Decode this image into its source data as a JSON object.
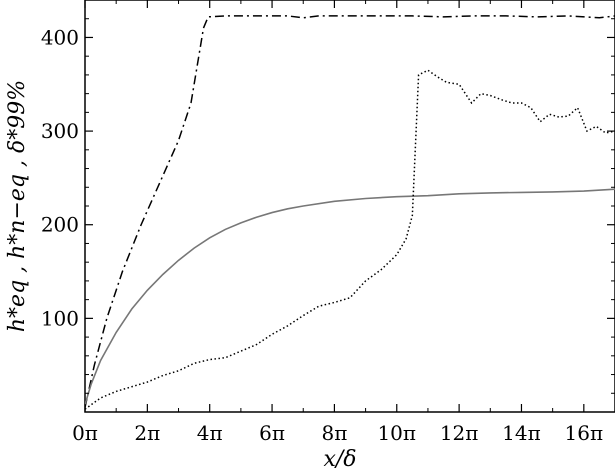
{
  "chart_data": {
    "type": "line",
    "title": "",
    "xlabel": "x/δ",
    "ylabel": "h*eq , h*n−eq , δ*99%",
    "xlim": [
      0,
      17
    ],
    "ylim": [
      0,
      440
    ],
    "grid": false,
    "x_tick_values": [
      0,
      2,
      4,
      6,
      8,
      10,
      12,
      14,
      16
    ],
    "x_tick_labels": [
      "0π",
      "2π",
      "4π",
      "6π",
      "8π",
      "10π",
      "12π",
      "14π",
      "16π"
    ],
    "y_tick_values": [
      100,
      200,
      300,
      400
    ],
    "y_tick_labels": [
      "100",
      "200",
      "300",
      "400"
    ],
    "series": [
      {
        "style": "dash-dot",
        "color": "#000000",
        "x": [
          0,
          0.3,
          0.7,
          1.2,
          1.8,
          2.4,
          3.0,
          3.4,
          3.6,
          3.8,
          3.95,
          4.5,
          5.5,
          6.5,
          7.0,
          7.5,
          8.5,
          9.5,
          10.5,
          11.5,
          12.5,
          13.5,
          14.5,
          15.5,
          16.5,
          17.0
        ],
        "y": [
          5,
          50,
          100,
          150,
          200,
          245,
          290,
          330,
          370,
          410,
          422,
          423,
          423,
          423,
          421,
          423,
          423,
          423,
          423,
          422,
          423,
          423,
          422,
          423,
          421,
          423
        ]
      },
      {
        "style": "solid",
        "color": "#777777",
        "x": [
          0,
          0.2,
          0.5,
          1.0,
          1.5,
          2.0,
          2.5,
          3.0,
          3.5,
          4.0,
          4.5,
          5.0,
          5.5,
          6.0,
          6.5,
          7.0,
          8.0,
          9.0,
          10.0,
          11.0,
          12.0,
          13.0,
          14.0,
          15.0,
          16.0,
          17.0
        ],
        "y": [
          8,
          30,
          55,
          85,
          110,
          130,
          147,
          162,
          175,
          186,
          195,
          202,
          208,
          213,
          217,
          220,
          225,
          228,
          230,
          231,
          233,
          234,
          234.5,
          235,
          236,
          238
        ]
      },
      {
        "style": "dotted",
        "color": "#000000",
        "x": [
          0,
          0.5,
          1.0,
          1.5,
          2.0,
          2.5,
          3.0,
          3.5,
          4.0,
          4.5,
          5.0,
          5.5,
          6.0,
          6.5,
          7.0,
          7.5,
          8.0,
          8.5,
          9.0,
          9.5,
          10.0,
          10.3,
          10.5,
          10.7,
          11.0,
          11.3,
          11.6,
          12.0,
          12.4,
          12.7,
          13.0,
          13.4,
          13.7,
          14.0,
          14.3,
          14.6,
          14.9,
          15.2,
          15.5,
          15.8,
          16.1,
          16.4,
          16.7,
          17.0
        ],
        "y": [
          3,
          15,
          22,
          27,
          32,
          39,
          44,
          52,
          56,
          58,
          65,
          72,
          83,
          92,
          103,
          113,
          117,
          122,
          140,
          152,
          168,
          185,
          210,
          360,
          365,
          358,
          352,
          350,
          330,
          340,
          338,
          333,
          330,
          330,
          325,
          310,
          318,
          315,
          316,
          325,
          300,
          305,
          298,
          300
        ]
      }
    ]
  }
}
